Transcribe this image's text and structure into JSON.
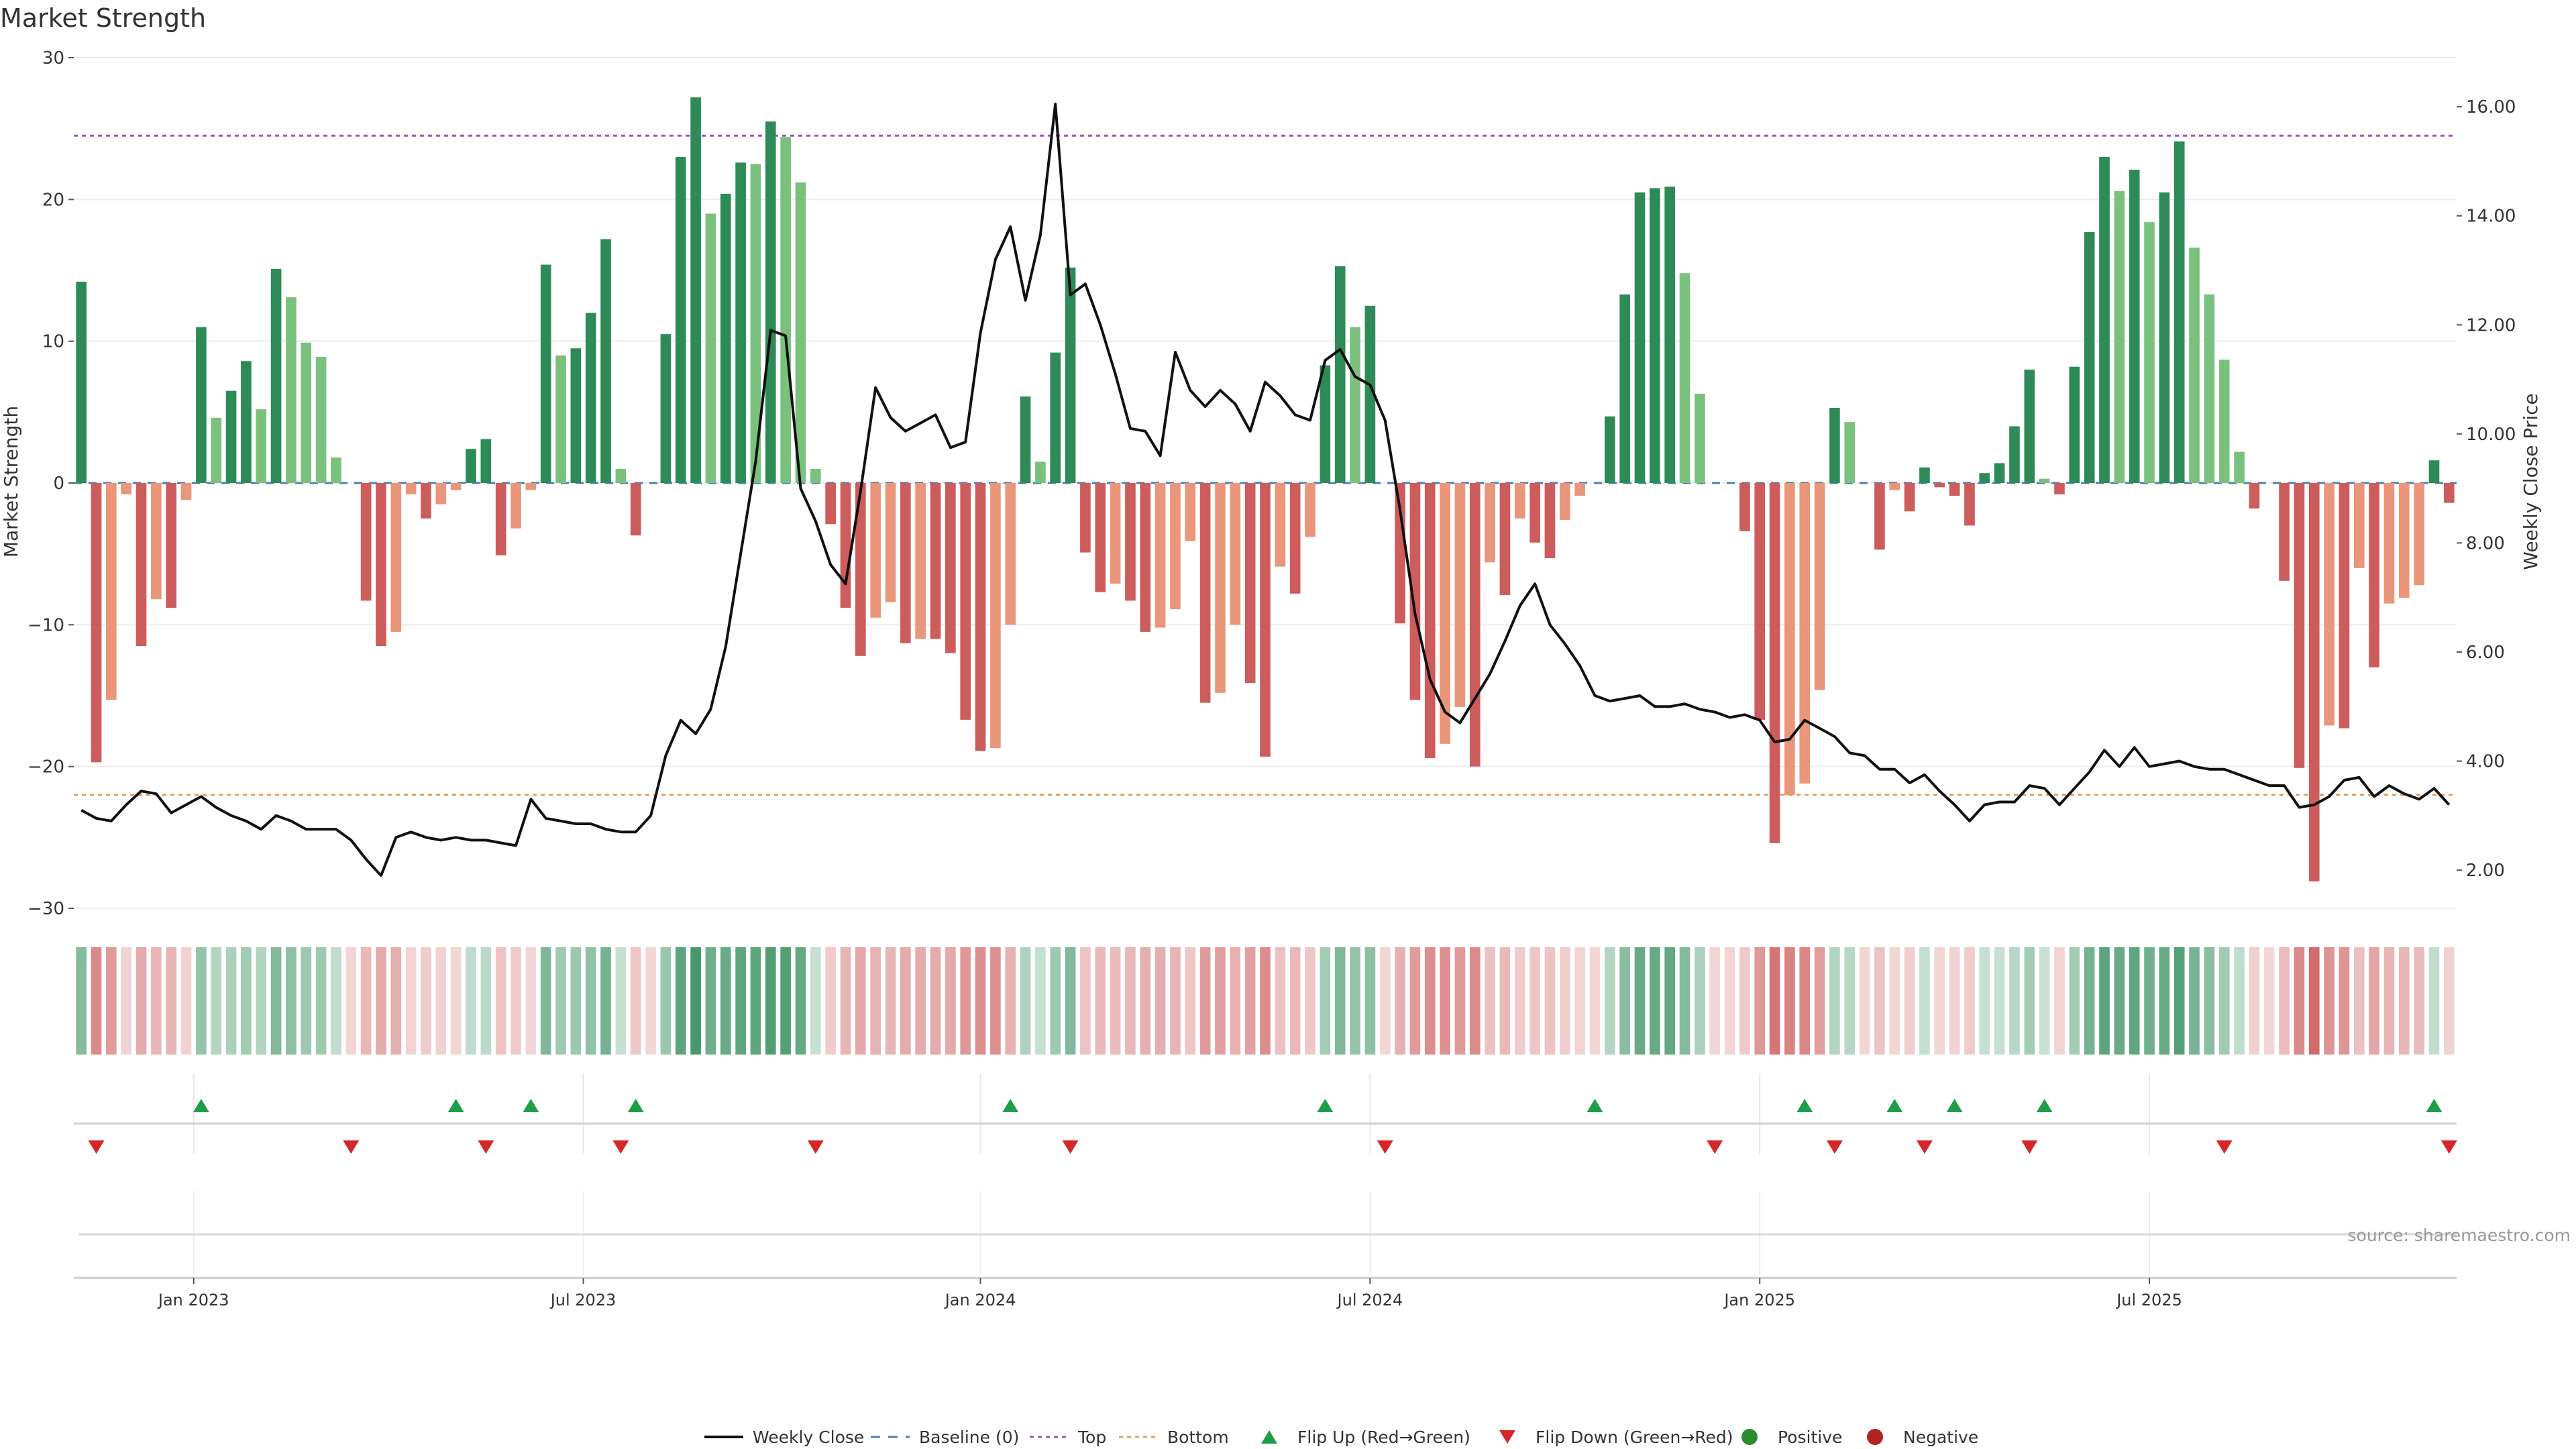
{
  "chart_data": {
    "type": "bar",
    "title": "Market Strength",
    "source": "source: sharemaestro.com",
    "ylabel_left": "Market Strength",
    "ylabel_right": "Weekly Close Price",
    "ylim_left": [
      -30,
      30
    ],
    "ylim_right": [
      1.3,
      16.9
    ],
    "yticks_left": [
      "30",
      "20",
      "10",
      "0",
      "−10",
      "−20",
      "−30"
    ],
    "yticks_right": [
      "16.00",
      "14.00",
      "12.00",
      "10.00",
      "8.00",
      "6.00",
      "4.00",
      "2.00"
    ],
    "x_ticks": [
      {
        "label": "Jan 2023",
        "index": 8
      },
      {
        "label": "Jul 2023",
        "index": 34
      },
      {
        "label": "Jan 2024",
        "index": 60.5
      },
      {
        "label": "Jul 2024",
        "index": 86.5
      },
      {
        "label": "Jan 2025",
        "index": 112.5
      },
      {
        "label": "Jul 2025",
        "index": 138.5
      }
    ],
    "top_level": 24.5,
    "bottom_level": -22,
    "strength": [
      14.2,
      -19.7,
      -15.3,
      -0.8,
      -11.5,
      -8.2,
      -8.8,
      -1.2,
      11,
      4.6,
      6.5,
      8.6,
      5.2,
      15.1,
      13.1,
      9.9,
      8.9,
      1.8,
      0,
      -8.3,
      -11.5,
      -10.5,
      -0.8,
      -2.5,
      -1.5,
      -0.5,
      2.4,
      3.1,
      -5.1,
      -3.2,
      -0.5,
      15.4,
      9,
      9.5,
      12,
      17.2,
      1,
      -3.7,
      0,
      10.5,
      23,
      27.2,
      19,
      20.4,
      22.6,
      22.5,
      25.5,
      24.4,
      21.2,
      1,
      -2.9,
      -8.8,
      -12.2,
      -9.5,
      -8.4,
      -11.3,
      -11,
      -11,
      -12,
      -16.7,
      -18.9,
      -18.7,
      -10,
      6.1,
      1.5,
      9.2,
      15.2,
      -4.9,
      -7.7,
      -7.1,
      -8.3,
      -10.5,
      -10.2,
      -8.9,
      -4.1,
      -15.5,
      -14.8,
      -10,
      -14.1,
      -19.3,
      -5.9,
      -7.8,
      -3.8,
      8.3,
      15.3,
      11,
      12.5,
      0,
      -9.9,
      -15.3,
      -19.4,
      -18.4,
      -15.8,
      -20,
      -5.6,
      -7.9,
      -2.5,
      -4.2,
      -5.3,
      -2.6,
      -0.9,
      0,
      4.7,
      13.3,
      20.5,
      20.8,
      20.9,
      14.8,
      6.3,
      0,
      0,
      -3.4,
      -16.7,
      -25.4,
      -22,
      -21.2,
      -14.6,
      5.3,
      4.3,
      0,
      -4.7,
      -0.5,
      -2,
      1.1,
      -0.3,
      -0.9,
      -3,
      0.7,
      1.4,
      4,
      8,
      0.3,
      -0.8,
      8.2,
      17.7,
      23,
      20.6,
      22.1,
      18.4,
      20.5,
      24.1,
      16.6,
      13.3,
      8.7,
      2.2,
      -1.8,
      0,
      -6.9,
      -20.1,
      -28.1,
      -17.1,
      -17.3,
      -6,
      -13,
      -8.5,
      -8.1,
      -7.2,
      1.6,
      -1.4
    ],
    "close": [
      3.1,
      2.95,
      2.9,
      3.2,
      3.45,
      3.4,
      3.05,
      3.2,
      3.35,
      3.15,
      3,
      2.9,
      2.75,
      3,
      2.9,
      2.75,
      2.75,
      2.75,
      2.55,
      2.2,
      1.9,
      2.6,
      2.7,
      2.6,
      2.55,
      2.6,
      2.55,
      2.55,
      2.5,
      2.45,
      3.3,
      2.95,
      2.9,
      2.85,
      2.85,
      2.75,
      2.7,
      2.7,
      3,
      4.1,
      4.75,
      4.5,
      4.95,
      6.1,
      7.8,
      9.5,
      11.9,
      11.8,
      9,
      8.4,
      7.6,
      7.25,
      8.95,
      10.85,
      10.3,
      10.05,
      10.2,
      10.35,
      9.75,
      9.85,
      11.85,
      13.2,
      13.8,
      12.45,
      13.65,
      16.05,
      12.55,
      12.75,
      12,
      11.1,
      10.1,
      10.05,
      9.6,
      11.5,
      10.8,
      10.5,
      10.8,
      10.55,
      10.05,
      10.95,
      10.7,
      10.35,
      10.25,
      11.35,
      11.55,
      11.05,
      10.9,
      10.25,
      8.6,
      6.7,
      5.5,
      4.9,
      4.7,
      5.15,
      5.6,
      6.2,
      6.85,
      7.25,
      6.5,
      6.15,
      5.75,
      5.2,
      5.1,
      5.15,
      5.2,
      5,
      5,
      5.05,
      4.95,
      4.9,
      4.8,
      4.85,
      4.75,
      4.35,
      4.4,
      4.75,
      4.6,
      4.45,
      4.15,
      4.1,
      3.85,
      3.85,
      3.6,
      3.75,
      3.45,
      3.2,
      2.9,
      3.2,
      3.25,
      3.25,
      3.55,
      3.5,
      3.2,
      3.5,
      3.8,
      4.2,
      3.9,
      4.25,
      3.9,
      3.95,
      4,
      3.9,
      3.85,
      3.85,
      3.75,
      3.65,
      3.55,
      3.55,
      3.15,
      3.2,
      3.35,
      3.65,
      3.7,
      3.35,
      3.55,
      3.4,
      3.3,
      3.5,
      3.2
    ],
    "flip_up": [
      8,
      25,
      30,
      37,
      62,
      83,
      101,
      115,
      121,
      125,
      131,
      157
    ],
    "flip_down": [
      1,
      18,
      27,
      36,
      49,
      66,
      87,
      109,
      117,
      123,
      130,
      143,
      158
    ],
    "legend": [
      "Weekly Close",
      "Baseline (0)",
      "Top",
      "Bottom",
      "Flip Up (Red→Green)",
      "Flip Down (Green→Red)",
      "Positive",
      "Negative"
    ],
    "colors": {
      "pos_strong": "#2e8b57",
      "pos_weak": "#7bc17e",
      "neg_strong": "#cd5c5c",
      "neg_weak": "#e9967a",
      "close_line": "#111111",
      "baseline": "#4682b4",
      "top": "#9b59b6",
      "bottom": "#e0a060",
      "flip_up": "#1e9e4a",
      "flip_down": "#d62728",
      "positive_dot": "#2e8b2e",
      "negative_dot": "#b22222"
    }
  }
}
